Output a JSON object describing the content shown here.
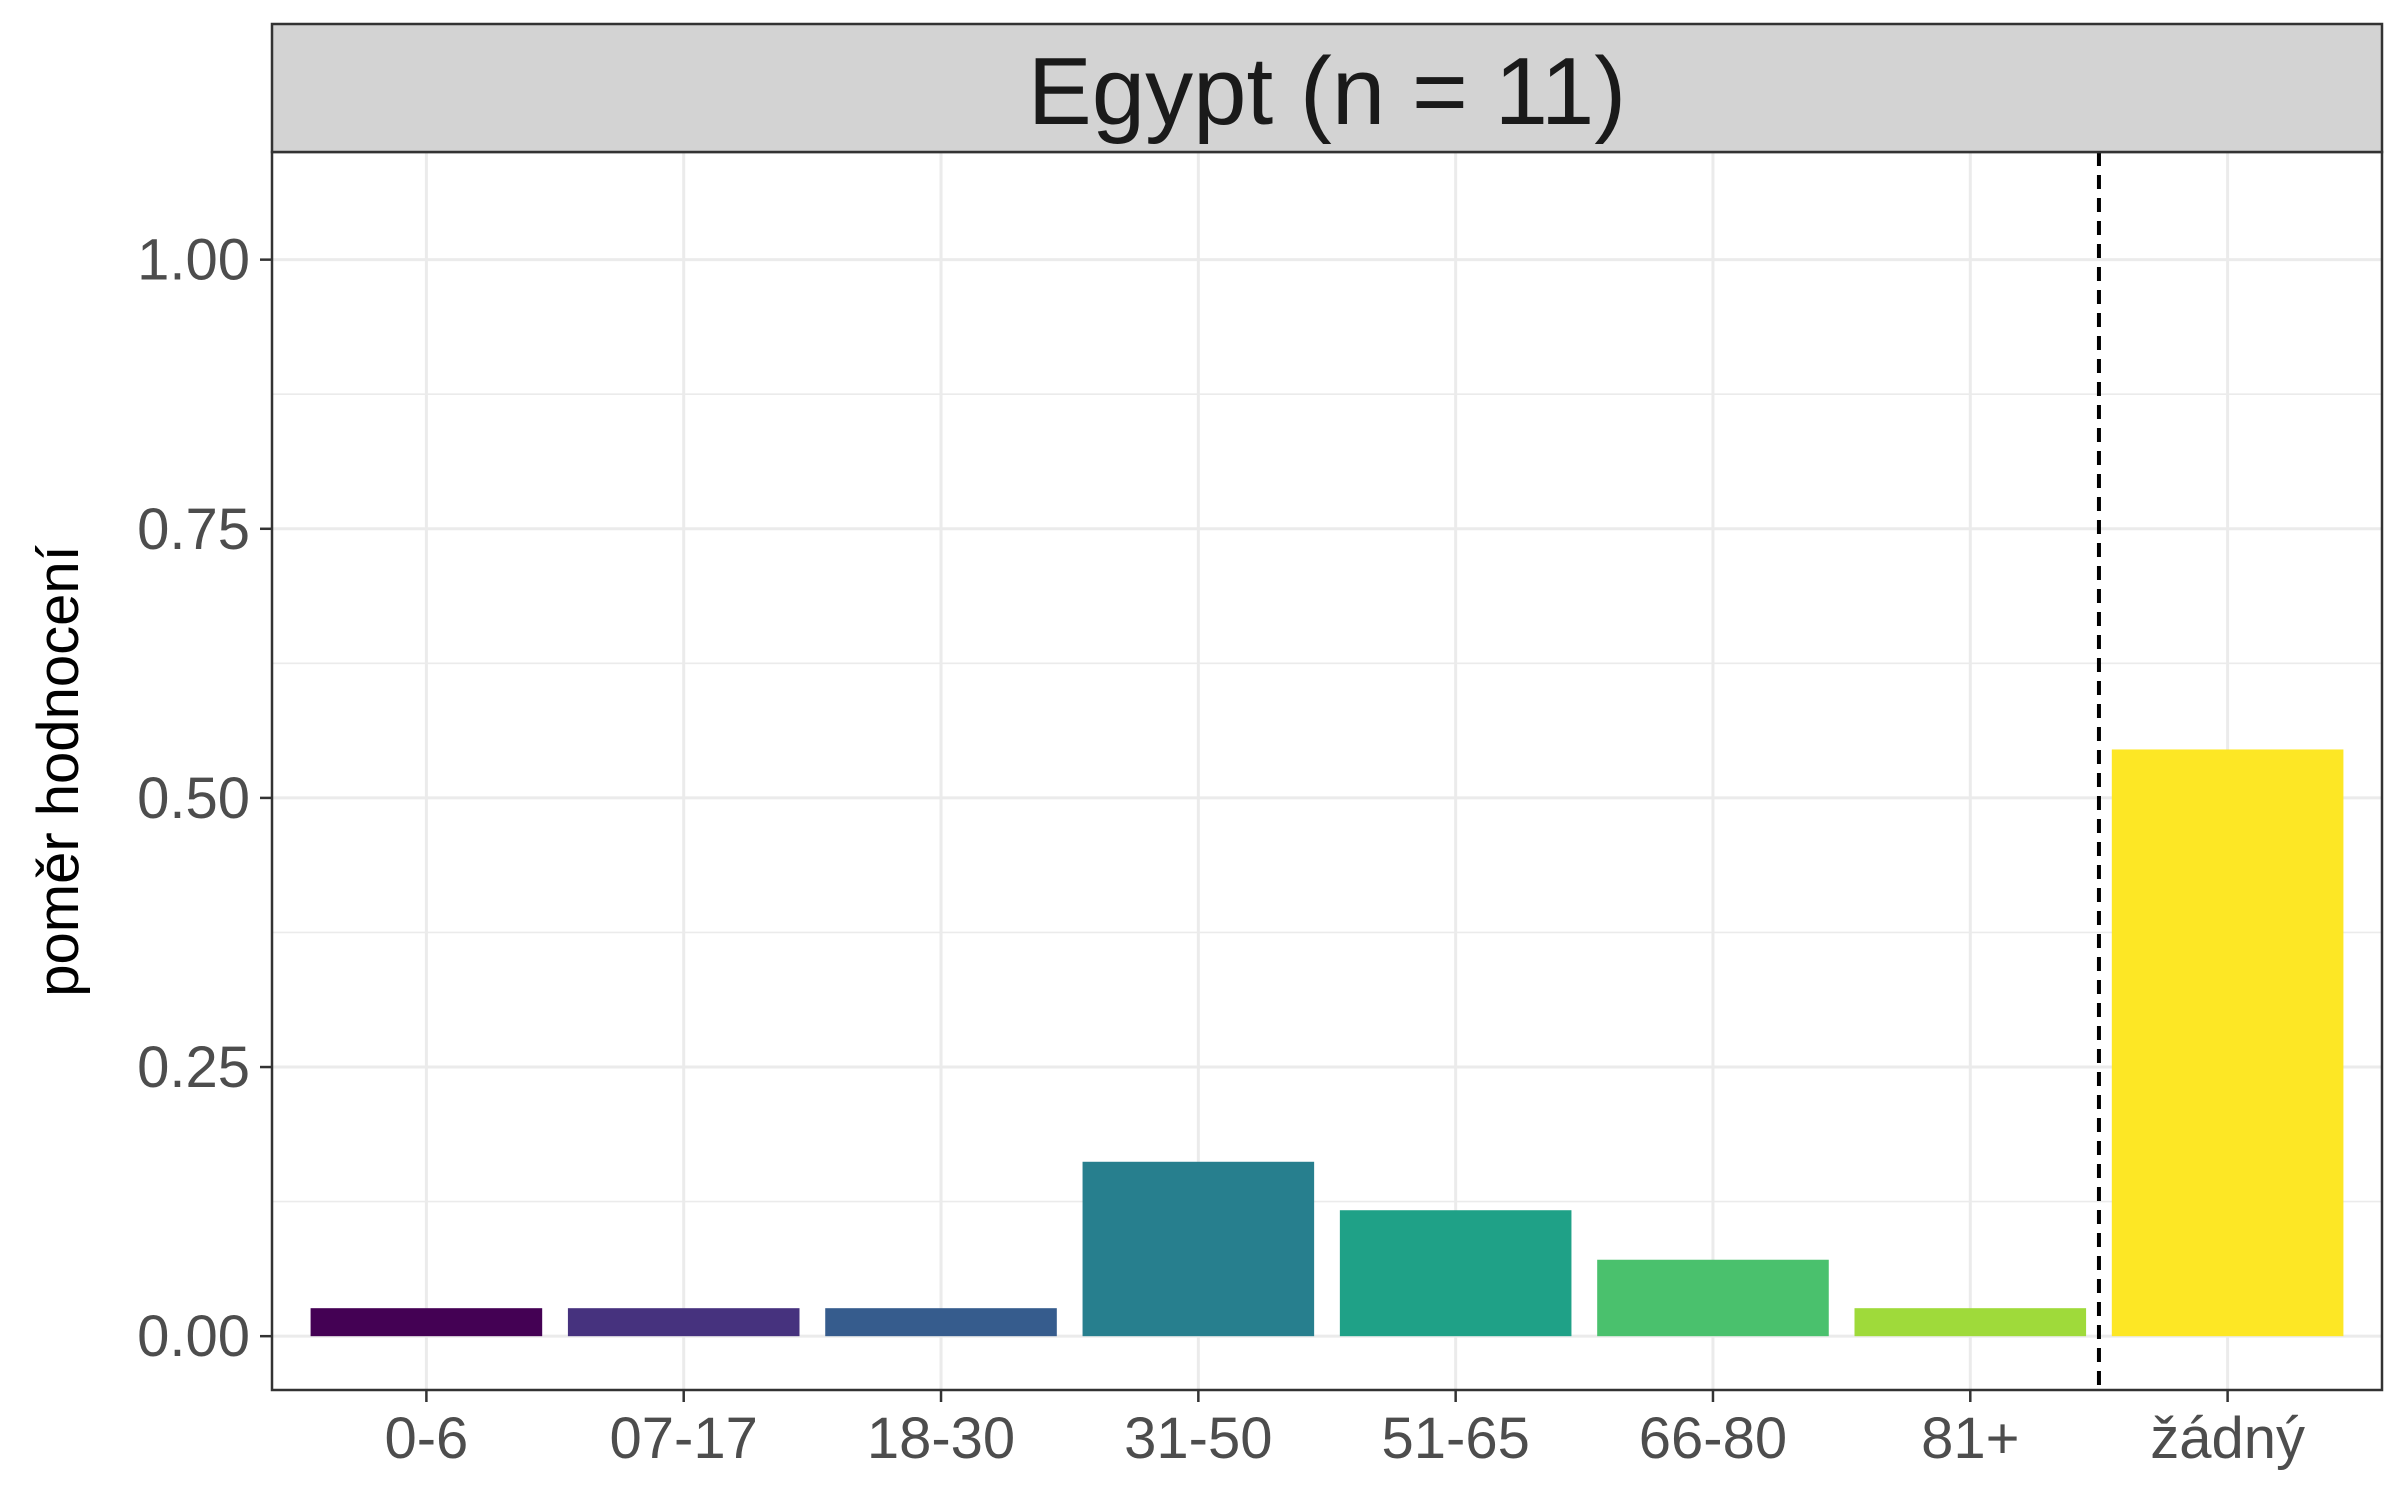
{
  "chart_data": {
    "type": "bar",
    "title": "Egypt (n = 11)",
    "xlabel": "",
    "ylabel": "poměr hodnocení",
    "categories": [
      "0-6",
      "07-17",
      "18-30",
      "31-50",
      "51-65",
      "66-80",
      "81+",
      "žádný"
    ],
    "values": [
      0.026,
      0.026,
      0.026,
      0.162,
      0.117,
      0.071,
      0.026,
      0.545
    ],
    "colors": [
      "#440154",
      "#46327E",
      "#365C8D",
      "#277F8E",
      "#1FA187",
      "#4AC16D",
      "#9FDA3A",
      "#FDE725"
    ],
    "ylim": [
      -0.05,
      1.1
    ],
    "yticks": [
      0.0,
      0.25,
      0.5,
      0.75,
      1.0
    ],
    "ytick_labels": [
      "0.00",
      "0.25",
      "0.50",
      "0.75",
      "1.00"
    ],
    "y_minor_ticks": [
      0.125,
      0.375,
      0.625,
      0.875
    ],
    "reference_line": {
      "after_category_index": 6,
      "style": "dashed",
      "color": "#000000"
    },
    "grid": true,
    "legend": "none",
    "facet_strip_color": "#D3D3D3"
  }
}
